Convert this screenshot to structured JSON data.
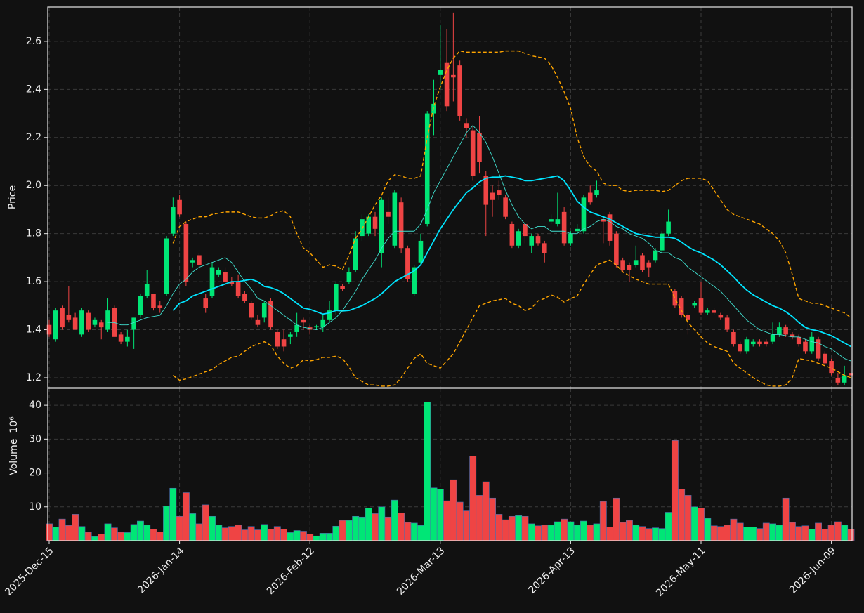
{
  "chart_data": {
    "type": "candlestick",
    "ylabel": "Price",
    "categories": [
      "2025-Dec-15",
      null,
      null,
      null,
      null,
      null,
      null,
      null,
      null,
      null,
      null,
      null,
      null,
      null,
      null,
      null,
      null,
      null,
      null,
      null,
      "2026-Jan-14",
      null,
      null,
      null,
      null,
      null,
      null,
      null,
      null,
      null,
      null,
      null,
      null,
      null,
      null,
      null,
      null,
      null,
      null,
      null,
      "2026-Feb-12",
      null,
      null,
      null,
      null,
      null,
      null,
      null,
      null,
      null,
      null,
      null,
      null,
      null,
      null,
      null,
      null,
      null,
      null,
      null,
      "2026-Mar-13",
      null,
      null,
      null,
      null,
      null,
      null,
      null,
      null,
      null,
      null,
      null,
      null,
      null,
      null,
      null,
      null,
      null,
      null,
      null,
      "2026-Apr-13",
      null,
      null,
      null,
      null,
      null,
      null,
      null,
      null,
      null,
      null,
      null,
      null,
      null,
      null,
      null,
      null,
      null,
      null,
      null,
      "2026-May-11",
      null,
      null,
      null,
      null,
      null,
      null,
      null,
      null,
      null,
      null,
      null,
      null,
      null,
      null,
      null,
      null,
      null,
      null,
      null,
      "2026-Jun-09",
      null,
      null,
      null
    ],
    "open": [
      1.42,
      1.36,
      1.49,
      1.46,
      1.45,
      1.38,
      1.47,
      1.42,
      1.43,
      1.4,
      1.49,
      1.38,
      1.35,
      1.4,
      1.46,
      1.54,
      1.55,
      1.5,
      1.55,
      1.8,
      1.94,
      1.84,
      1.68,
      1.71,
      1.53,
      1.54,
      1.63,
      1.64,
      1.6,
      1.6,
      1.55,
      1.51,
      1.44,
      1.45,
      1.52,
      1.39,
      1.36,
      1.37,
      1.39,
      1.44,
      1.41,
      1.41,
      1.41,
      1.44,
      1.48,
      1.58,
      1.6,
      1.65,
      1.79,
      1.8,
      1.87,
      1.72,
      1.89,
      1.75,
      1.93,
      1.74,
      1.55,
      1.68,
      1.84,
      2.3,
      2.46,
      2.51,
      2.46,
      2.5,
      2.26,
      2.23,
      2.22,
      2.04,
      1.97,
      1.98,
      1.95,
      1.84,
      1.75,
      1.84,
      1.75,
      1.79,
      1.76,
      1.85,
      1.84,
      1.89,
      1.76,
      1.81,
      1.81,
      1.97,
      1.96,
      1.86,
      1.88,
      1.8,
      1.69,
      1.67,
      1.67,
      1.71,
      1.68,
      1.69,
      1.73,
      1.8,
      1.56,
      1.53,
      1.46,
      1.5,
      1.53,
      1.47,
      1.48,
      1.46,
      1.45,
      1.39,
      1.34,
      1.31,
      1.34,
      1.35,
      1.35,
      1.35,
      1.38,
      1.41,
      1.38,
      1.37,
      1.35,
      1.31,
      1.36,
      1.3,
      1.27,
      1.2,
      1.18,
      1.22
    ],
    "high": [
      1.44,
      1.49,
      1.5,
      1.58,
      1.47,
      1.49,
      1.48,
      1.45,
      1.44,
      1.53,
      1.5,
      1.39,
      1.4,
      1.45,
      1.55,
      1.65,
      1.55,
      1.52,
      1.79,
      1.95,
      1.96,
      1.85,
      1.7,
      1.72,
      1.55,
      1.68,
      1.66,
      1.66,
      1.62,
      1.63,
      1.56,
      1.52,
      1.46,
      1.52,
      1.53,
      1.4,
      1.4,
      1.39,
      1.47,
      1.45,
      1.42,
      1.42,
      1.46,
      1.52,
      1.6,
      1.59,
      1.66,
      1.81,
      1.88,
      1.88,
      1.89,
      1.95,
      1.95,
      1.98,
      1.95,
      1.75,
      1.67,
      1.8,
      2.31,
      2.44,
      2.67,
      2.65,
      2.72,
      2.52,
      2.28,
      2.25,
      2.29,
      2.06,
      2.0,
      2.02,
      1.96,
      1.85,
      1.82,
      1.85,
      1.8,
      1.8,
      1.77,
      1.88,
      1.97,
      1.91,
      1.81,
      1.84,
      1.96,
      2.0,
      2.02,
      1.87,
      1.89,
      1.81,
      1.7,
      1.68,
      1.75,
      1.72,
      1.69,
      1.74,
      1.81,
      1.9,
      1.57,
      1.54,
      1.47,
      1.52,
      1.6,
      1.49,
      1.49,
      1.47,
      1.46,
      1.4,
      1.35,
      1.37,
      1.36,
      1.36,
      1.36,
      1.43,
      1.43,
      1.42,
      1.39,
      1.38,
      1.36,
      1.39,
      1.37,
      1.31,
      1.28,
      1.22,
      1.25,
      1.25
    ],
    "low": [
      1.37,
      1.35,
      1.4,
      1.43,
      1.4,
      1.37,
      1.39,
      1.41,
      1.36,
      1.39,
      1.37,
      1.34,
      1.33,
      1.32,
      1.45,
      1.53,
      1.48,
      1.47,
      1.54,
      1.79,
      1.87,
      1.58,
      1.66,
      1.66,
      1.47,
      1.53,
      1.62,
      1.58,
      1.58,
      1.53,
      1.51,
      1.44,
      1.41,
      1.43,
      1.4,
      1.32,
      1.31,
      1.34,
      1.37,
      1.4,
      1.38,
      1.4,
      1.39,
      1.43,
      1.46,
      1.56,
      1.59,
      1.64,
      1.77,
      1.79,
      1.79,
      1.66,
      1.84,
      1.74,
      1.72,
      1.6,
      1.54,
      1.67,
      1.83,
      2.21,
      2.4,
      2.31,
      2.35,
      2.27,
      2.2,
      2.02,
      2.05,
      1.79,
      1.87,
      1.94,
      1.86,
      1.74,
      1.74,
      1.76,
      1.72,
      1.75,
      1.68,
      1.84,
      1.83,
      1.75,
      1.75,
      1.8,
      1.8,
      1.92,
      1.95,
      1.76,
      1.75,
      1.66,
      1.64,
      1.6,
      1.66,
      1.64,
      1.62,
      1.68,
      1.72,
      1.79,
      1.49,
      1.45,
      1.38,
      1.49,
      1.46,
      1.46,
      1.46,
      1.44,
      1.39,
      1.33,
      1.3,
      1.3,
      1.33,
      1.33,
      1.33,
      1.34,
      1.37,
      1.37,
      1.36,
      1.33,
      1.3,
      1.3,
      1.27,
      1.25,
      1.21,
      1.17,
      1.17,
      1.2
    ],
    "close": [
      1.38,
      1.48,
      1.41,
      1.44,
      1.4,
      1.48,
      1.4,
      1.44,
      1.41,
      1.48,
      1.37,
      1.35,
      1.37,
      1.45,
      1.54,
      1.59,
      1.49,
      1.49,
      1.78,
      1.91,
      1.88,
      1.6,
      1.69,
      1.67,
      1.49,
      1.66,
      1.65,
      1.6,
      1.59,
      1.54,
      1.52,
      1.45,
      1.42,
      1.51,
      1.41,
      1.33,
      1.33,
      1.38,
      1.42,
      1.43,
      1.4,
      1.415,
      1.44,
      1.48,
      1.59,
      1.57,
      1.64,
      1.78,
      1.86,
      1.87,
      1.82,
      1.94,
      1.87,
      1.97,
      1.74,
      1.61,
      1.66,
      1.77,
      2.3,
      2.34,
      2.48,
      2.33,
      2.45,
      2.29,
      2.24,
      2.04,
      2.1,
      1.92,
      1.94,
      1.96,
      1.87,
      1.75,
      1.81,
      1.79,
      1.79,
      1.76,
      1.72,
      1.86,
      1.86,
      1.76,
      1.8,
      1.82,
      1.95,
      1.93,
      1.98,
      1.85,
      1.77,
      1.67,
      1.65,
      1.65,
      1.69,
      1.65,
      1.66,
      1.73,
      1.8,
      1.85,
      1.5,
      1.46,
      1.44,
      1.51,
      1.47,
      1.48,
      1.47,
      1.45,
      1.4,
      1.34,
      1.31,
      1.36,
      1.35,
      1.34,
      1.34,
      1.38,
      1.41,
      1.38,
      1.37,
      1.34,
      1.31,
      1.37,
      1.28,
      1.26,
      1.22,
      1.18,
      1.21,
      1.21
    ],
    "up_color": "#00e676",
    "down_color": "#ef4444",
    "overlays": [
      {
        "color": "#00e5ff",
        "dashed": false,
        "values": [
          null,
          null,
          null,
          null,
          null,
          null,
          null,
          null,
          null,
          null,
          null,
          null,
          null,
          null,
          null,
          null,
          null,
          null,
          null,
          1.48,
          1.51,
          1.52,
          1.54,
          1.55,
          1.56,
          1.57,
          1.58,
          1.59,
          1.6,
          1.6,
          1.605,
          1.61,
          1.6,
          1.58,
          1.575,
          1.565,
          1.55,
          1.53,
          1.51,
          1.49,
          1.485,
          1.475,
          1.465,
          1.47,
          1.48,
          1.478,
          1.48,
          1.49,
          1.5,
          1.515,
          1.53,
          1.55,
          1.575,
          1.6,
          1.615,
          1.63,
          1.645,
          1.67,
          1.72,
          1.77,
          1.82,
          1.86,
          1.9,
          1.935,
          1.97,
          1.99,
          2.015,
          2.03,
          2.035,
          2.035,
          2.04,
          2.035,
          2.03,
          2.02,
          2.02,
          2.025,
          2.03,
          2.035,
          2.04,
          2.02,
          1.98,
          1.935,
          1.91,
          1.89,
          1.88,
          1.87,
          1.86,
          1.845,
          1.83,
          1.815,
          1.8,
          1.795,
          1.79,
          1.785,
          1.785,
          1.785,
          1.78,
          1.765,
          1.745,
          1.73,
          1.72,
          1.705,
          1.69,
          1.67,
          1.645,
          1.62,
          1.59,
          1.565,
          1.545,
          1.53,
          1.515,
          1.5,
          1.49,
          1.475,
          1.455,
          1.43,
          1.41,
          1.4,
          1.395,
          1.385,
          1.375,
          1.36,
          1.345,
          1.33
        ]
      },
      {
        "color": "#40e0d0",
        "dashed": false,
        "values": [
          null,
          null,
          null,
          null,
          null,
          null,
          null,
          null,
          null,
          1.43,
          1.43,
          1.42,
          1.42,
          1.43,
          1.44,
          1.45,
          1.455,
          1.46,
          1.5,
          1.55,
          1.59,
          1.61,
          1.64,
          1.66,
          1.67,
          1.68,
          1.69,
          1.7,
          1.68,
          1.64,
          1.6,
          1.57,
          1.53,
          1.52,
          1.5,
          1.48,
          1.46,
          1.44,
          1.42,
          1.41,
          1.405,
          1.4,
          1.41,
          1.43,
          1.45,
          1.48,
          1.52,
          1.56,
          1.61,
          1.65,
          1.69,
          1.74,
          1.78,
          1.81,
          1.81,
          1.81,
          1.81,
          1.84,
          1.9,
          1.97,
          2.02,
          2.07,
          2.12,
          2.17,
          2.22,
          2.25,
          2.22,
          2.18,
          2.12,
          2.05,
          1.98,
          1.92,
          1.87,
          1.84,
          1.82,
          1.83,
          1.83,
          1.81,
          1.81,
          1.81,
          1.8,
          1.8,
          1.82,
          1.83,
          1.85,
          1.86,
          1.85,
          1.83,
          1.82,
          1.8,
          1.79,
          1.78,
          1.76,
          1.73,
          1.72,
          1.72,
          1.7,
          1.69,
          1.66,
          1.64,
          1.62,
          1.6,
          1.58,
          1.56,
          1.53,
          1.5,
          1.47,
          1.44,
          1.42,
          1.4,
          1.39,
          1.38,
          1.38,
          1.375,
          1.37,
          1.37,
          1.36,
          1.35,
          1.345,
          1.33,
          1.32,
          1.3,
          1.28,
          1.27
        ]
      },
      {
        "color": "#ffa500",
        "dashed": true,
        "values": [
          null,
          null,
          null,
          null,
          null,
          null,
          null,
          null,
          null,
          null,
          null,
          null,
          null,
          null,
          null,
          null,
          null,
          null,
          null,
          1.76,
          1.83,
          1.85,
          1.86,
          1.87,
          1.87,
          1.88,
          1.885,
          1.89,
          1.89,
          1.89,
          1.88,
          1.87,
          1.865,
          1.865,
          1.875,
          1.89,
          1.895,
          1.87,
          1.8,
          1.74,
          1.72,
          1.69,
          1.66,
          1.67,
          1.665,
          1.65,
          1.71,
          1.78,
          1.82,
          1.87,
          1.92,
          1.96,
          2.02,
          2.045,
          2.04,
          2.03,
          2.03,
          2.04,
          2.2,
          2.33,
          2.41,
          2.48,
          2.53,
          2.56,
          2.555,
          2.555,
          2.555,
          2.555,
          2.555,
          2.555,
          2.56,
          2.56,
          2.56,
          2.55,
          2.54,
          2.535,
          2.53,
          2.5,
          2.45,
          2.39,
          2.32,
          2.2,
          2.12,
          2.08,
          2.06,
          2.01,
          2.0,
          2.0,
          1.98,
          1.975,
          1.98,
          1.98,
          1.98,
          1.98,
          1.975,
          1.98,
          2.0,
          2.02,
          2.03,
          2.03,
          2.03,
          2.02,
          1.98,
          1.94,
          1.9,
          1.88,
          1.87,
          1.86,
          1.85,
          1.84,
          1.82,
          1.8,
          1.77,
          1.72,
          1.63,
          1.53,
          1.52,
          1.51,
          1.51,
          1.5,
          1.49,
          1.48,
          1.47,
          1.45
        ]
      },
      {
        "color": "#ffa500",
        "dashed": true,
        "values": [
          null,
          null,
          null,
          null,
          null,
          null,
          null,
          null,
          null,
          null,
          null,
          null,
          null,
          null,
          null,
          null,
          null,
          null,
          null,
          1.21,
          1.19,
          1.195,
          1.205,
          1.215,
          1.225,
          1.235,
          1.255,
          1.27,
          1.285,
          1.29,
          1.31,
          1.33,
          1.34,
          1.35,
          1.335,
          1.29,
          1.26,
          1.24,
          1.25,
          1.275,
          1.27,
          1.275,
          1.285,
          1.285,
          1.29,
          1.28,
          1.245,
          1.2,
          1.185,
          1.17,
          1.17,
          1.165,
          1.165,
          1.17,
          1.2,
          1.24,
          1.28,
          1.3,
          1.26,
          1.25,
          1.24,
          1.27,
          1.3,
          1.35,
          1.4,
          1.45,
          1.5,
          1.51,
          1.52,
          1.525,
          1.53,
          1.51,
          1.5,
          1.48,
          1.49,
          1.52,
          1.53,
          1.545,
          1.535,
          1.515,
          1.53,
          1.54,
          1.59,
          1.63,
          1.67,
          1.68,
          1.69,
          1.67,
          1.64,
          1.625,
          1.61,
          1.6,
          1.59,
          1.59,
          1.59,
          1.59,
          1.53,
          1.48,
          1.43,
          1.4,
          1.37,
          1.345,
          1.33,
          1.32,
          1.31,
          1.26,
          1.24,
          1.22,
          1.2,
          1.185,
          1.17,
          1.165,
          1.165,
          1.17,
          1.2,
          1.28,
          1.275,
          1.27,
          1.26,
          1.25,
          1.24,
          1.225,
          1.21,
          1.2
        ]
      }
    ],
    "ylim": [
      1.159,
      2.743
    ],
    "yticks": [
      1.2,
      1.4,
      1.6,
      1.8,
      {
        "value": 2,
        "label": "2.0"
      },
      2.2,
      2.4,
      2.6
    ],
    "volume_ylabel": "Volume",
    "volume_unit": "10⁶",
    "volume": [
      5,
      4,
      6.4,
      4.5,
      7.8,
      4.2,
      2.5,
      1.2,
      2,
      5,
      3.8,
      2.5,
      2.4,
      4.8,
      5.8,
      4.6,
      3.4,
      2.6,
      10.2,
      15.5,
      7.2,
      14.2,
      8,
      5,
      10.6,
      7.2,
      4.6,
      3.8,
      4.2,
      4.6,
      3.2,
      4.2,
      3.2,
      4.8,
      3.4,
      4.2,
      3.4,
      2.4,
      3,
      2.8,
      2,
      1.4,
      2.2,
      2.2,
      4.3,
      6,
      6,
      7.2,
      7,
      9.6,
      8,
      10,
      7,
      12,
      8.2,
      5.4,
      5.2,
      4.5,
      41,
      15.6,
      15.2,
      11.8,
      18,
      11.4,
      8.8,
      25,
      13.4,
      17.4,
      12.6,
      7.8,
      6.2,
      7.2,
      7.4,
      7.2,
      5,
      4.4,
      4.6,
      4.6,
      5.6,
      6.4,
      5.6,
      4.6,
      5.8,
      4.6,
      5,
      11.6,
      4,
      12.6,
      5.4,
      6,
      4.6,
      4.2,
      3.6,
      3.8,
      3.6,
      8.4,
      29.6,
      15.2,
      13.4,
      10,
      9.6,
      6.6,
      4.4,
      4.2,
      4.6,
      6.4,
      5.2,
      4,
      4,
      3.6,
      5.2,
      5,
      4.6,
      12.6,
      5.4,
      4.2,
      4.4,
      3.4,
      5.2,
      3.4,
      4.6,
      5.6,
      4.6,
      3.4
    ],
    "volume_ylim": [
      0,
      45
    ],
    "volume_yticks": [
      10,
      20,
      30,
      40
    ],
    "grid": true
  }
}
